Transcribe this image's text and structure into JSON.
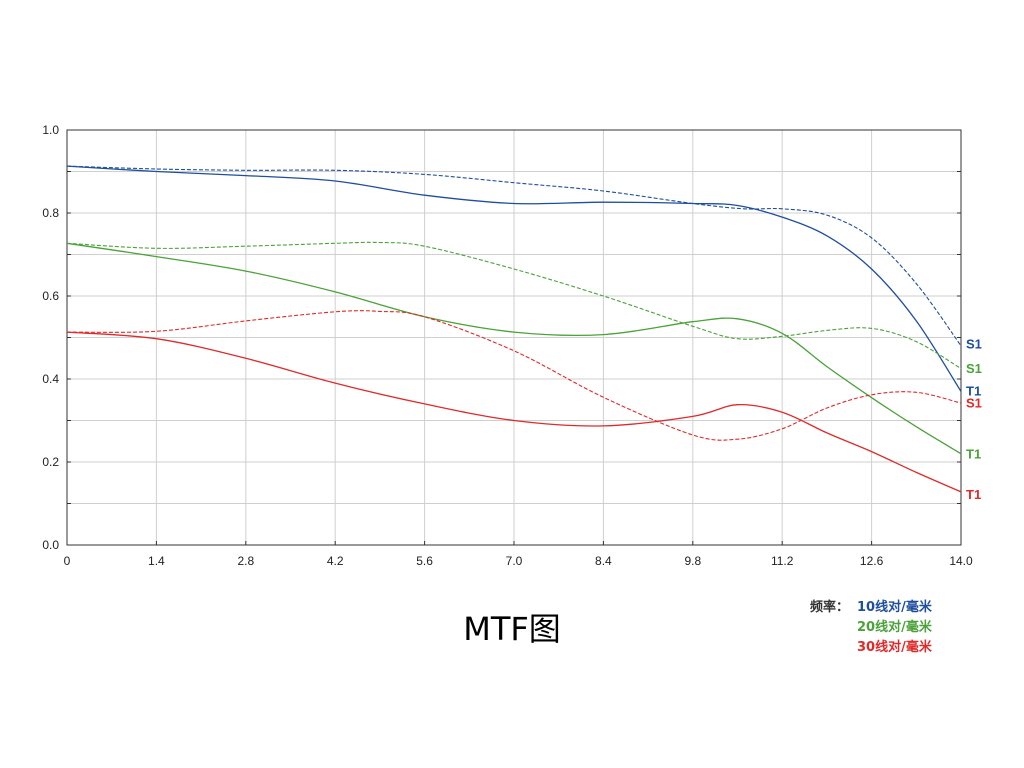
{
  "chart_data": {
    "type": "line",
    "title": "MTF图",
    "xlabel": "",
    "ylabel": "",
    "xlim": [
      0,
      14.0
    ],
    "ylim": [
      0,
      1.0
    ],
    "x_ticks": [
      "0",
      "1.4",
      "2.8",
      "4.2",
      "5.6",
      "7.0",
      "8.4",
      "9.8",
      "11.2",
      "12.6",
      "14.0"
    ],
    "y_ticks": [
      "0.0",
      "0.2",
      "0.4",
      "0.6",
      "0.8",
      "1.0"
    ],
    "grid": true,
    "legend_title": "频率：",
    "series": [
      {
        "name": "10线对/毫米",
        "label": "S1",
        "color": "#1f4e9e",
        "dash": true,
        "points": [
          [
            0,
            0.913
          ],
          [
            1.4,
            0.906
          ],
          [
            2.8,
            0.903
          ],
          [
            4.2,
            0.903
          ],
          [
            5.6,
            0.893
          ],
          [
            7.0,
            0.873
          ],
          [
            8.4,
            0.853
          ],
          [
            9.8,
            0.823
          ],
          [
            10.6,
            0.81
          ],
          [
            11.2,
            0.81
          ],
          [
            11.9,
            0.795
          ],
          [
            12.6,
            0.74
          ],
          [
            13.3,
            0.63
          ],
          [
            14.0,
            0.48
          ]
        ]
      },
      {
        "name": "10线对/毫米",
        "label": "T1",
        "color": "#1f4e9e",
        "dash": false,
        "points": [
          [
            0,
            0.913
          ],
          [
            1.4,
            0.9
          ],
          [
            2.8,
            0.89
          ],
          [
            4.2,
            0.877
          ],
          [
            5.6,
            0.843
          ],
          [
            7.0,
            0.823
          ],
          [
            8.4,
            0.826
          ],
          [
            9.8,
            0.823
          ],
          [
            10.5,
            0.818
          ],
          [
            11.2,
            0.79
          ],
          [
            11.9,
            0.745
          ],
          [
            12.6,
            0.665
          ],
          [
            13.3,
            0.54
          ],
          [
            14.0,
            0.37
          ]
        ]
      },
      {
        "name": "20线对/毫米",
        "label": "S1",
        "color": "#4aa238",
        "dash": true,
        "points": [
          [
            0,
            0.727
          ],
          [
            1.4,
            0.715
          ],
          [
            2.8,
            0.72
          ],
          [
            4.2,
            0.727
          ],
          [
            4.9,
            0.729
          ],
          [
            5.6,
            0.72
          ],
          [
            7.0,
            0.665
          ],
          [
            8.4,
            0.6
          ],
          [
            9.8,
            0.527
          ],
          [
            10.5,
            0.497
          ],
          [
            11.2,
            0.503
          ],
          [
            11.9,
            0.517
          ],
          [
            12.6,
            0.522
          ],
          [
            13.3,
            0.49
          ],
          [
            14.0,
            0.425
          ]
        ]
      },
      {
        "name": "20线对/毫米",
        "label": "T1",
        "color": "#4aa238",
        "dash": false,
        "points": [
          [
            0,
            0.727
          ],
          [
            1.4,
            0.695
          ],
          [
            2.8,
            0.66
          ],
          [
            4.2,
            0.61
          ],
          [
            5.6,
            0.55
          ],
          [
            7.0,
            0.513
          ],
          [
            8.4,
            0.507
          ],
          [
            9.8,
            0.538
          ],
          [
            10.5,
            0.545
          ],
          [
            11.2,
            0.51
          ],
          [
            11.9,
            0.43
          ],
          [
            12.6,
            0.355
          ],
          [
            13.3,
            0.285
          ],
          [
            14.0,
            0.22
          ]
        ]
      },
      {
        "name": "30线对/毫米",
        "label": "S1",
        "color": "#e02a2a",
        "dash": true,
        "points": [
          [
            0,
            0.513
          ],
          [
            1.4,
            0.515
          ],
          [
            2.8,
            0.54
          ],
          [
            4.2,
            0.562
          ],
          [
            4.9,
            0.563
          ],
          [
            5.6,
            0.55
          ],
          [
            7.0,
            0.468
          ],
          [
            8.4,
            0.356
          ],
          [
            9.8,
            0.265
          ],
          [
            10.5,
            0.255
          ],
          [
            11.2,
            0.28
          ],
          [
            11.9,
            0.33
          ],
          [
            12.6,
            0.362
          ],
          [
            13.3,
            0.368
          ],
          [
            14.0,
            0.342
          ]
        ]
      },
      {
        "name": "30线对/毫米",
        "label": "T1",
        "color": "#e02a2a",
        "dash": false,
        "points": [
          [
            0,
            0.513
          ],
          [
            1.4,
            0.497
          ],
          [
            2.8,
            0.45
          ],
          [
            4.2,
            0.39
          ],
          [
            5.6,
            0.34
          ],
          [
            7.0,
            0.3
          ],
          [
            8.4,
            0.287
          ],
          [
            9.8,
            0.31
          ],
          [
            10.5,
            0.338
          ],
          [
            11.2,
            0.32
          ],
          [
            11.9,
            0.27
          ],
          [
            12.6,
            0.225
          ],
          [
            13.3,
            0.175
          ],
          [
            14.0,
            0.128
          ]
        ]
      }
    ],
    "end_labels": [
      {
        "text": "S1",
        "color": "#1f4e9e",
        "y": 0.485
      },
      {
        "text": "S1",
        "color": "#4aa238",
        "y": 0.427
      },
      {
        "text": "T1",
        "color": "#1f4e9e",
        "y": 0.372
      },
      {
        "text": "S1",
        "color": "#e02a2a",
        "y": 0.343
      },
      {
        "text": "T1",
        "color": "#4aa238",
        "y": 0.22
      },
      {
        "text": "T1",
        "color": "#e02a2a",
        "y": 0.123
      }
    ]
  },
  "legend": {
    "title": "频率：",
    "items": [
      {
        "text": "10线对/毫米",
        "color": "#1f4e9e"
      },
      {
        "text": "20线对/毫米",
        "color": "#4aa238"
      },
      {
        "text": "30线对/毫米",
        "color": "#e02a2a"
      }
    ]
  }
}
